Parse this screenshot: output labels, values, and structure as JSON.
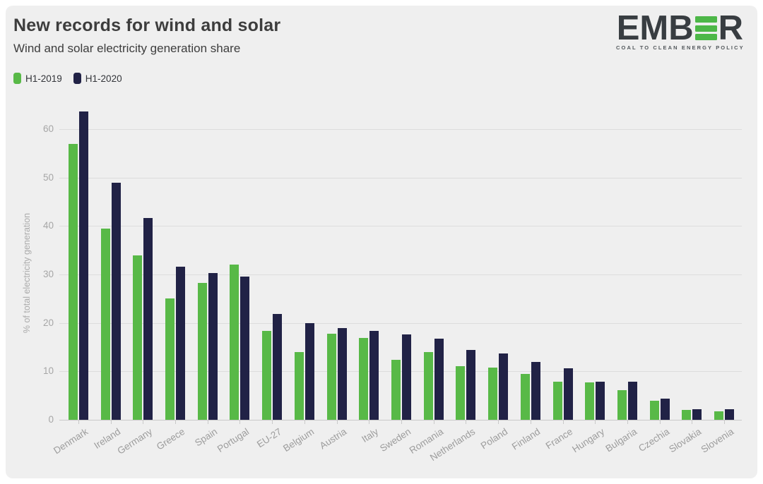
{
  "page": {
    "background": "#ffffff",
    "card_background": "#efefef",
    "gridline_color": "#dddddd",
    "axis_text_color": "#a6a6a6"
  },
  "header": {
    "title": "New records for wind and solar",
    "subtitle": "Wind and solar electricity generation share"
  },
  "legend": [
    {
      "label": "H1-2019",
      "color": "#58b947"
    },
    {
      "label": "H1-2020",
      "color": "#212246"
    }
  ],
  "logo": {
    "text_left": "EMB",
    "text_right": "R",
    "e_bar_color": "#4db748",
    "text_color": "#383d41",
    "tagline": "COAL TO CLEAN ENERGY POLICY"
  },
  "chart_data": {
    "type": "bar",
    "title": "New records for wind and solar",
    "subtitle": "Wind and solar electricity generation share",
    "xlabel": "",
    "ylabel": "% of total electricity generation",
    "ylim": [
      0,
      65
    ],
    "yticks": [
      0,
      10,
      20,
      30,
      40,
      50,
      60
    ],
    "grid": true,
    "legend_position": "top-left",
    "categories": [
      "Denmark",
      "Ireland",
      "Germany",
      "Greece",
      "Spain",
      "Portugal",
      "EU-27",
      "Belgium",
      "Austria",
      "Italy",
      "Sweden",
      "Romania",
      "Netherlands",
      "Poland",
      "Finland",
      "France",
      "Hungary",
      "Bulgaria",
      "Czechia",
      "Slovakia",
      "Slovenia"
    ],
    "series": [
      {
        "name": "H1-2019",
        "color": "#58b947",
        "values": [
          57.0,
          39.5,
          33.9,
          25.0,
          28.2,
          32.0,
          18.3,
          14.0,
          17.7,
          16.9,
          12.4,
          14.0,
          11.1,
          10.8,
          9.5,
          7.9,
          7.7,
          6.1,
          4.0,
          2.0,
          1.8
        ]
      },
      {
        "name": "H1-2020",
        "color": "#212246",
        "values": [
          63.6,
          49.0,
          41.6,
          31.6,
          30.3,
          29.5,
          21.9,
          19.9,
          19.0,
          18.3,
          17.6,
          16.8,
          14.4,
          13.7,
          12.0,
          10.6,
          7.9,
          7.8,
          4.4,
          2.2,
          2.2
        ]
      }
    ]
  }
}
